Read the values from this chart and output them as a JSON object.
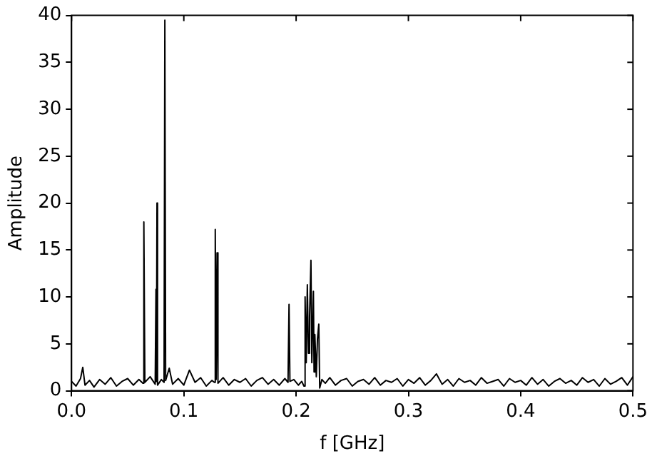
{
  "chart_data": {
    "type": "line",
    "xlabel": "f [GHz]",
    "ylabel": "Amplitude",
    "xlim": [
      0,
      0.5
    ],
    "ylim": [
      0,
      40
    ],
    "xticks": [
      {
        "value": 0,
        "label": "0.0"
      },
      0.1,
      0.2,
      0.3,
      0.4,
      0.5
    ],
    "yticks": [
      0,
      5,
      10,
      15,
      20,
      25,
      30,
      35,
      40
    ],
    "grid": false,
    "legend": false,
    "marker": "none",
    "line_style": "solid",
    "series": [
      {
        "color": "#000000",
        "x": [
          0,
          0.004,
          0.008,
          0.01,
          0.012,
          0.016,
          0.02,
          0.025,
          0.03,
          0.035,
          0.04,
          0.045,
          0.05,
          0.055,
          0.06,
          0.0635,
          0.0644,
          0.0653,
          0.07,
          0.0745,
          0.0752,
          0.0756,
          0.0761,
          0.0766,
          0.08,
          0.0824,
          0.0831,
          0.0838,
          0.087,
          0.09,
          0.095,
          0.1,
          0.105,
          0.11,
          0.115,
          0.12,
          0.125,
          0.1272,
          0.128,
          0.1288,
          0.1296,
          0.1304,
          0.135,
          0.14,
          0.145,
          0.15,
          0.155,
          0.16,
          0.165,
          0.17,
          0.175,
          0.18,
          0.185,
          0.19,
          0.1928,
          0.1937,
          0.1945,
          0.198,
          0.202,
          0.205,
          0.207,
          0.208,
          0.209,
          0.21,
          0.211,
          0.212,
          0.2132,
          0.214,
          0.2154,
          0.216,
          0.2167,
          0.218,
          0.219,
          0.2202,
          0.221,
          0.223,
          0.226,
          0.23,
          0.235,
          0.24,
          0.245,
          0.25,
          0.255,
          0.26,
          0.265,
          0.27,
          0.275,
          0.28,
          0.285,
          0.29,
          0.295,
          0.3,
          0.305,
          0.31,
          0.315,
          0.32,
          0.325,
          0.33,
          0.335,
          0.34,
          0.345,
          0.35,
          0.355,
          0.36,
          0.365,
          0.37,
          0.375,
          0.38,
          0.385,
          0.39,
          0.395,
          0.4,
          0.405,
          0.41,
          0.415,
          0.42,
          0.425,
          0.43,
          0.435,
          0.44,
          0.445,
          0.45,
          0.455,
          0.46,
          0.465,
          0.47,
          0.475,
          0.48,
          0.485,
          0.49,
          0.495,
          0.5
        ],
        "values": [
          1.0,
          0.5,
          1.3,
          2.5,
          0.6,
          1.1,
          0.4,
          1.2,
          0.7,
          1.4,
          0.5,
          1.0,
          1.3,
          0.6,
          1.2,
          0.8,
          18,
          0.9,
          1.5,
          0.7,
          10.8,
          1.0,
          20,
          0.6,
          1.2,
          0.9,
          39.5,
          1.1,
          2.4,
          0.7,
          1.3,
          0.6,
          2.2,
          0.9,
          1.4,
          0.5,
          1.1,
          0.9,
          17.2,
          1.2,
          14.7,
          0.8,
          1.4,
          0.6,
          1.2,
          0.9,
          1.3,
          0.5,
          1.1,
          1.4,
          0.7,
          1.2,
          0.6,
          1.3,
          0.9,
          9.2,
          1.0,
          1.2,
          0.6,
          1.0,
          0.5,
          10,
          3,
          11.3,
          4,
          8,
          13.9,
          3,
          10.6,
          2,
          6,
          1.5,
          5.5,
          7.1,
          0.3,
          1.2,
          0.8,
          1.4,
          0.6,
          1.1,
          1.3,
          0.5,
          1.0,
          1.2,
          0.7,
          1.4,
          0.6,
          1.1,
          0.9,
          1.3,
          0.5,
          1.2,
          0.8,
          1.4,
          0.6,
          1.1,
          1.8,
          0.7,
          1.2,
          0.5,
          1.3,
          0.9,
          1.1,
          0.6,
          1.4,
          0.8,
          1.0,
          1.2,
          0.5,
          1.3,
          0.9,
          1.1,
          0.6,
          1.4,
          0.7,
          1.2,
          0.5,
          1.0,
          1.3,
          0.8,
          1.1,
          0.6,
          1.4,
          0.9,
          1.2,
          0.5,
          1.3,
          0.7,
          1.0,
          1.4,
          0.6,
          1.5
        ]
      }
    ]
  }
}
